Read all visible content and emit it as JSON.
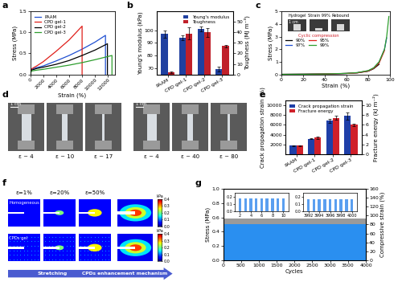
{
  "chart_data": [
    {
      "title": "a",
      "type": "line",
      "x_label": "Strain (%)",
      "y_label": "Stress (MPa)",
      "xlim": [
        0,
        13000
      ],
      "xticks": [
        0,
        2000,
        4000,
        6000,
        8000,
        10000,
        12000
      ],
      "ylim": [
        0,
        1.5
      ],
      "yticks": [
        {
          "value": 0,
          "label": "0.0"
        },
        {
          "value": 0.5,
          "label": "0.5"
        },
        {
          "value": 1.0,
          "label": "1.0"
        },
        {
          "value": 1.5,
          "label": "1.5"
        }
      ],
      "legend": "upper left",
      "series": [
        {
          "name": "PAAM",
          "color": "#1f4fd1",
          "x": [
            0,
            200,
            1000,
            2000,
            4000,
            6000,
            8000,
            10000,
            11600,
            11600
          ],
          "values": [
            0,
            0.12,
            0.16,
            0.2,
            0.32,
            0.45,
            0.6,
            0.77,
            0.93,
            0
          ]
        },
        {
          "name": "CPD gel-1",
          "color": "#e0201b",
          "x": [
            0,
            200,
            1000,
            2000,
            4000,
            6000,
            8000,
            8000
          ],
          "values": [
            0,
            0.13,
            0.2,
            0.3,
            0.55,
            0.82,
            1.15,
            0
          ]
        },
        {
          "name": "CPD gel-2",
          "color": "#000000",
          "x": [
            0,
            200,
            1000,
            2000,
            4000,
            6000,
            8000,
            10000,
            11900,
            11900
          ],
          "values": [
            0,
            0.1,
            0.14,
            0.17,
            0.24,
            0.33,
            0.45,
            0.58,
            0.73,
            0
          ]
        },
        {
          "name": "CPD gel-3",
          "color": "#2e9e2e",
          "x": [
            0,
            200,
            1000,
            2000,
            4000,
            6000,
            8000,
            10000,
            12600,
            12600
          ],
          "values": [
            0,
            0.08,
            0.1,
            0.12,
            0.17,
            0.22,
            0.28,
            0.35,
            0.45,
            0
          ]
        }
      ]
    },
    {
      "title": "b",
      "type": "bar",
      "categories": [
        "PAAM",
        "CPD gel-1",
        "CPD gel-2",
        "CPD gel-3"
      ],
      "y_label": "Young's modulus (kPa)",
      "y2_label": "Toughness (MJ m⁻³)",
      "ylim": [
        65,
        115
      ],
      "yticks": [
        70,
        80,
        90,
        100
      ],
      "y2lim": [
        0,
        60
      ],
      "y2ticks": [
        0,
        10,
        20,
        30,
        40,
        50
      ],
      "legend": "upper right",
      "series": [
        {
          "name": "Young's modulus",
          "color": "#2040a0",
          "values": [
            97,
            94,
            101,
            69
          ],
          "errors": [
            3,
            2,
            2,
            2
          ]
        },
        {
          "name": "Toughness",
          "color": "#c0202a",
          "axis": "y2",
          "values": [
            2,
            39,
            40,
            27
          ],
          "errors": [
            1,
            6,
            4,
            1
          ]
        }
      ]
    },
    {
      "title": "c",
      "type": "line",
      "x_label": "Strain (%)",
      "y_label": "Stress (MPa)",
      "xlim": [
        0,
        100
      ],
      "xticks": [
        0,
        20,
        40,
        60,
        80,
        100
      ],
      "ylim": [
        0,
        5
      ],
      "yticks": [
        0,
        1,
        2,
        3,
        4,
        5
      ],
      "legend": "center left",
      "annotations": [
        "Hydrogel",
        "Strain 99%",
        "Rebound",
        "1 cm",
        "Cyclic compression"
      ],
      "series": [
        {
          "name": "90%",
          "color": "#000000",
          "x": [
            0,
            20,
            40,
            60,
            70,
            80,
            85,
            90
          ],
          "values": [
            0,
            0.01,
            0.03,
            0.07,
            0.12,
            0.25,
            0.45,
            0.8
          ]
        },
        {
          "name": "97%",
          "color": "#1f4fd1",
          "x": [
            0,
            20,
            40,
            60,
            70,
            80,
            85,
            90,
            95,
            97
          ],
          "values": [
            0,
            0.01,
            0.03,
            0.07,
            0.13,
            0.28,
            0.5,
            0.95,
            2.0,
            2.9
          ]
        },
        {
          "name": "95%",
          "color": "#e0201b",
          "x": [
            0,
            20,
            40,
            60,
            70,
            80,
            85,
            90,
            95
          ],
          "values": [
            0,
            0.01,
            0.03,
            0.07,
            0.12,
            0.27,
            0.48,
            0.9,
            1.9
          ]
        },
        {
          "name": "99%",
          "color": "#2e9e2e",
          "x": [
            0,
            20,
            40,
            60,
            70,
            80,
            85,
            90,
            95,
            97,
            99
          ],
          "values": [
            0,
            0.01,
            0.03,
            0.08,
            0.14,
            0.3,
            0.52,
            1.0,
            2.0,
            3.0,
            4.6
          ]
        }
      ]
    },
    {
      "title": "e",
      "type": "bar",
      "categories": [
        "PAAM",
        "CPD gel-1",
        "CPD gel-2",
        "CPD gel-3"
      ],
      "y_label": "Crack propagation strain (%)",
      "y2_label": "Fracture energy (kJ m⁻²)",
      "ylim": [
        0,
        11000
      ],
      "yticks": [
        2000,
        4000,
        6000,
        8000,
        10000
      ],
      "y2lim": [
        0,
        11
      ],
      "y2ticks": [
        0,
        2,
        4,
        6,
        8,
        10
      ],
      "legend": "upper left",
      "series": [
        {
          "name": "Crack propagation strain",
          "color": "#1f3fa8",
          "values": [
            1800,
            3200,
            6800,
            7800
          ],
          "errors": [
            100,
            150,
            400,
            700
          ]
        },
        {
          "name": "Fracture energy",
          "color": "#d0202a",
          "axis": "y2",
          "values": [
            1.8,
            3.4,
            7.4,
            6.0
          ],
          "errors": [
            0.1,
            0.2,
            0.4,
            0.2
          ]
        }
      ]
    },
    {
      "title": "g",
      "type": "area",
      "x_label": "Cycles",
      "y_label": "Stress (MPa)",
      "y2_label": "Compressive strain (%)",
      "xlim": [
        0,
        4000
      ],
      "xticks": [
        0,
        500,
        1000,
        1500,
        2000,
        2500,
        3000,
        3500,
        4000
      ],
      "ylim": [
        0,
        1.0
      ],
      "yticks": [
        {
          "value": 0,
          "label": "0.0"
        },
        {
          "value": 0.2,
          "label": "0.2"
        },
        {
          "value": 0.4,
          "label": "0.4"
        },
        {
          "value": 0.6,
          "label": "0.6"
        },
        {
          "value": 0.8,
          "label": "0.8"
        },
        {
          "value": 1.0,
          "label": "1.0"
        }
      ],
      "y2lim": [
        0,
        160
      ],
      "y2ticks": [
        0,
        20,
        40,
        60,
        80,
        100,
        120,
        140,
        160
      ],
      "series": [
        {
          "color": "#9a9a9a",
          "x": [
            0,
            4000
          ],
          "values": [
            0.58,
            0.58
          ]
        },
        {
          "color": "#2a8ff0",
          "axis": "y2",
          "x": [
            0,
            4000
          ],
          "values": [
            80,
            80
          ]
        }
      ],
      "insets": [
        {
          "type": "bar",
          "color": "#5a9ff0",
          "x": [
            2,
            3,
            4,
            5,
            6,
            7,
            8,
            9,
            10
          ],
          "values": [
            0.18,
            0.18,
            0.18,
            0.18,
            0.18,
            0.18,
            0.18,
            0.18,
            0.18
          ],
          "xlim": [
            1,
            11
          ],
          "xticks": [
            2,
            4,
            6,
            8,
            10
          ],
          "ylim": [
            0,
            0.25
          ],
          "yticks": [
            {
              "value": 0,
              "label": "0.0"
            },
            {
              "value": 0.1,
              "label": "0.1"
            },
            {
              "value": 0.2,
              "label": "0.2"
            }
          ]
        },
        {
          "type": "bar",
          "color": "#5a9ff0",
          "x": [
            3992,
            3993,
            3994,
            3995,
            3996,
            3997,
            3998,
            3999,
            4000
          ],
          "values": [
            0.17,
            0.17,
            0.17,
            0.17,
            0.17,
            0.17,
            0.17,
            0.17,
            0.17
          ],
          "xlim": [
            3991,
            4001
          ],
          "xticks": [
            3992,
            3994,
            3996,
            3998,
            4000
          ],
          "ylim": [
            0,
            0.25
          ],
          "yticks": [
            {
              "value": 0,
              "label": "0.0"
            },
            {
              "value": 0.1,
              "label": "0.1"
            },
            {
              "value": 0.2,
              "label": "0.2"
            }
          ]
        }
      ]
    }
  ],
  "panels": [
    {
      "title": "d",
      "groups": [
        {
          "scale_bar": "1 cm",
          "captions": [
            "ε ~ 4",
            "ε ~ 10",
            "ε ~ 17"
          ]
        },
        {
          "scale_bar": "1 cm",
          "captions": [
            "ε ~ 4",
            "ε ~ 40",
            "ε ~ 80"
          ]
        }
      ]
    },
    {
      "title": "f",
      "columns": [
        "ε=1%",
        "ε=20%",
        "ε=50%"
      ],
      "rows": [
        "Homogeneous",
        "CPDs gel"
      ],
      "colorbar_label": "kPa",
      "colorbar_range": [
        0.0,
        0.4
      ],
      "colorbar_ticks": [
        0.0,
        0.1,
        0.2,
        0.3,
        0.4
      ],
      "arrow_label": "Stretching",
      "mechanism": "CPDs enhancement mechanism"
    }
  ]
}
